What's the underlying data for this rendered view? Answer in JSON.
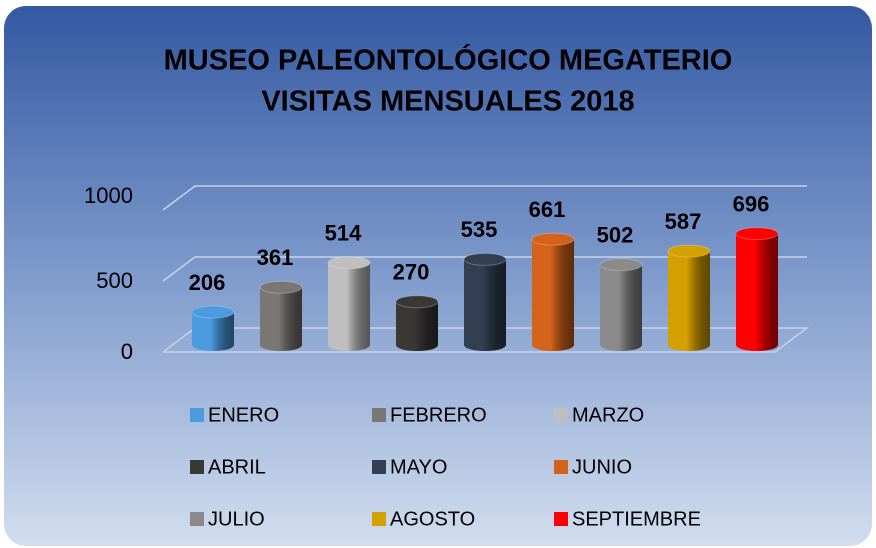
{
  "chart_data": {
    "type": "bar",
    "title": "MUSEO PALEONTOLÓGICO MEGATERIO",
    "subtitle": "VISITAS MENSUALES 2018",
    "series": [
      {
        "name": "ENERO",
        "color": "#4a9be0",
        "values": [
          206
        ]
      },
      {
        "name": "FEBRERO",
        "color": "#7a7673",
        "values": [
          361
        ]
      },
      {
        "name": "MARZO",
        "color": "#bfbfbf",
        "values": [
          514
        ]
      },
      {
        "name": "ABRIL",
        "color": "#3a3835",
        "values": [
          270
        ]
      },
      {
        "name": "MAYO",
        "color": "#323f52",
        "values": [
          535
        ]
      },
      {
        "name": "JUNIO",
        "color": "#d4621a",
        "values": [
          661
        ]
      },
      {
        "name": "JULIO",
        "color": "#8a8a8a",
        "values": [
          502
        ]
      },
      {
        "name": "AGOSTO",
        "color": "#d4a000",
        "values": [
          587
        ]
      },
      {
        "name": "SEPTIEMBRE",
        "color": "#ff0000",
        "values": [
          696
        ]
      }
    ],
    "ylim": [
      0,
      1000
    ],
    "yticks": [
      0,
      500,
      1000
    ],
    "grid": true
  }
}
